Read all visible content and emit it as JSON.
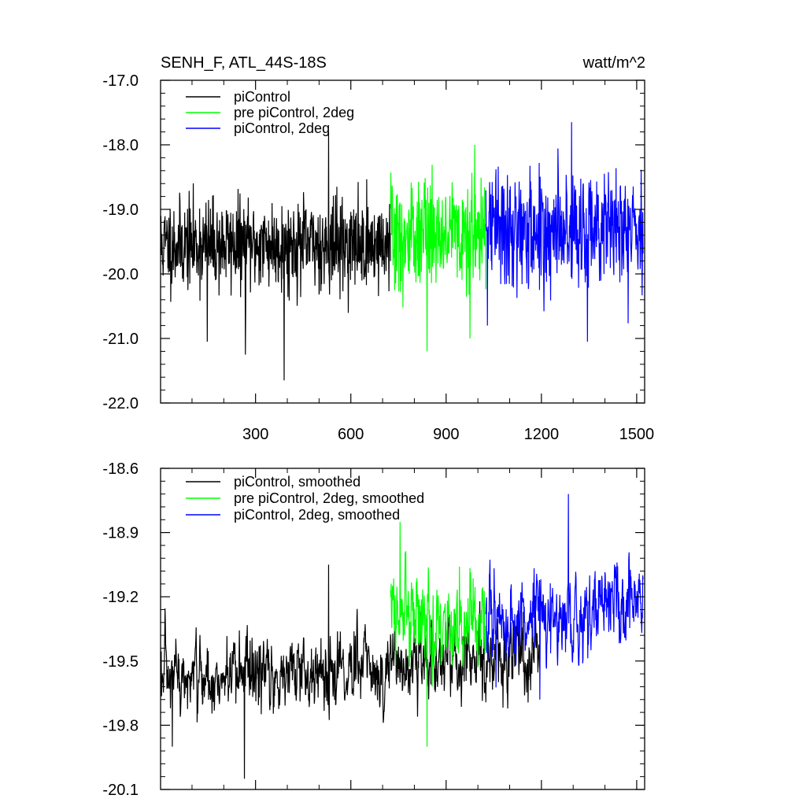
{
  "chart_data": [
    {
      "type": "line",
      "title": "SENH_F, ATL_44S-18S",
      "units": "watt/m^2",
      "xlim": [
        1,
        1525
      ],
      "ylim": [
        -22.0,
        -17.0
      ],
      "x_ticks": [
        300,
        600,
        900,
        1200,
        1500
      ],
      "y_ticks": [
        -22.0,
        -21.0,
        -20.0,
        -19.0,
        -18.0,
        -17.0
      ],
      "x_tick_labels": [
        "300",
        "600",
        "900",
        "1200",
        "1500"
      ],
      "y_tick_labels": [
        "-22.0",
        "-21.0",
        "-20.0",
        "-19.0",
        "-18.0",
        "-17.0"
      ],
      "legend_position": "top-left",
      "grid": false,
      "series": [
        {
          "name": "piControl",
          "color": "#000000",
          "x_range": [
            1,
            725
          ],
          "mean": -19.55,
          "std": 0.35,
          "peaks": [
            [
              530,
              -17.8
            ],
            [
              390,
              -21.65
            ],
            [
              268,
              -21.25
            ],
            [
              148,
              -21.05
            ]
          ]
        },
        {
          "name": "pre piControl, 2deg",
          "color": "#00ff00",
          "x_range": [
            725,
            1025
          ],
          "mean": -19.35,
          "std": 0.42,
          "peaks": [
            [
              840,
              -21.2
            ],
            [
              990,
              -18.0
            ],
            [
              975,
              -21.0
            ]
          ]
        },
        {
          "name": "piControl, 2deg",
          "color": "#0000ff",
          "x_range": [
            1025,
            1520
          ],
          "mean": -19.3,
          "std": 0.42,
          "peaks": [
            [
              1295,
              -17.65
            ],
            [
              1345,
              -21.05
            ],
            [
              1030,
              -20.8
            ]
          ]
        }
      ]
    },
    {
      "type": "line",
      "xlim": [
        1,
        1525
      ],
      "ylim": [
        -20.1,
        -18.6
      ],
      "x_ticks": [
        300,
        600,
        900,
        1200,
        1500
      ],
      "y_ticks": [
        -20.1,
        -19.8,
        -19.5,
        -19.2,
        -18.9,
        -18.6
      ],
      "y_tick_labels": [
        "-20.1",
        "-19.8",
        "-19.5",
        "-19.2",
        "-18.9",
        "-18.6"
      ],
      "legend_position": "top-left",
      "grid": false,
      "series": [
        {
          "name": "piControl, smoothed",
          "color": "#000000",
          "x_range": [
            1,
            1195
          ],
          "mean_start": -19.6,
          "mean_end": -19.47,
          "std": 0.1,
          "peaks": [
            [
              265,
              -20.05
            ],
            [
              530,
              -19.05
            ],
            [
              38,
              -19.9
            ]
          ]
        },
        {
          "name": "pre piControl, 2deg, smoothed",
          "color": "#00ff00",
          "x_range": [
            725,
            1025
          ],
          "mean_start": -19.3,
          "mean_end": -19.35,
          "std": 0.12,
          "peaks": [
            [
              755,
              -18.85
            ],
            [
              840,
              -19.9
            ]
          ]
        },
        {
          "name": "piControl, 2deg, smoothed",
          "color": "#0000ff",
          "x_range": [
            1025,
            1520
          ],
          "mean_start": -19.35,
          "mean_end": -19.22,
          "std": 0.12,
          "peaks": [
            [
              1285,
              -18.72
            ],
            [
              1195,
              -19.68
            ]
          ]
        }
      ]
    }
  ]
}
